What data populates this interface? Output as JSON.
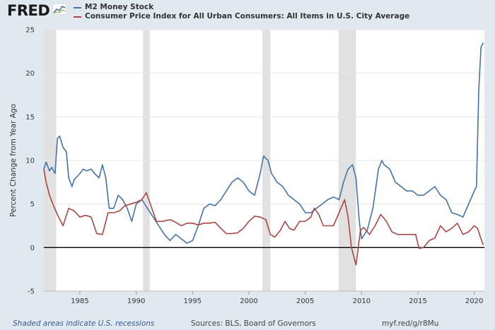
{
  "header": {
    "logo_text": "FRED",
    "logo_icon": "line-chart-icon"
  },
  "legend": [
    {
      "name": "M2 Money Stock",
      "color": "#4572a7"
    },
    {
      "name": "Consumer Price Index for All Urban Consumers: All Items in U.S. City Average",
      "color": "#aa4643"
    }
  ],
  "footer": {
    "left": "Shaded areas indicate U.S. recessions",
    "middle": "Sources: BLS, Board of Governors",
    "right": "myf.red/g/r8Mu"
  },
  "chart_data": {
    "type": "line",
    "ylabel": "Percent Change from Year Ago",
    "xlim": [
      1981.8,
      2020.9
    ],
    "ylim": [
      -5,
      25
    ],
    "y_ticks": [
      -5,
      0,
      5,
      10,
      15,
      20,
      25
    ],
    "x_ticks": [
      1985,
      1990,
      1995,
      2000,
      2005,
      2010,
      2015,
      2020
    ],
    "grid": true,
    "zero_line": true,
    "recessions": [
      [
        1981.8,
        1982.9
      ],
      [
        1990.6,
        1991.2
      ],
      [
        2001.2,
        2001.9
      ],
      [
        2007.95,
        2009.5
      ]
    ],
    "series": [
      {
        "name": "M2 Money Stock",
        "color": "#4572a7",
        "x": [
          1981.8,
          1982.0,
          1982.3,
          1982.5,
          1982.8,
          1983.0,
          1983.2,
          1983.5,
          1983.8,
          1984.0,
          1984.3,
          1984.5,
          1985.0,
          1985.3,
          1985.6,
          1986.0,
          1986.3,
          1986.7,
          1987.0,
          1987.3,
          1987.6,
          1988.0,
          1988.4,
          1988.8,
          1989.2,
          1989.6,
          1990.0,
          1990.5,
          1991.0,
          1991.5,
          1992.0,
          1992.5,
          1993.0,
          1993.5,
          1994.0,
          1994.5,
          1995.0,
          1995.5,
          1996.0,
          1996.5,
          1997.0,
          1997.5,
          1998.0,
          1998.5,
          1999.0,
          1999.5,
          2000.0,
          2000.5,
          2001.0,
          2001.3,
          2001.7,
          2002.0,
          2002.5,
          2003.0,
          2003.5,
          2004.0,
          2004.5,
          2005.0,
          2005.5,
          2006.0,
          2006.5,
          2007.0,
          2007.5,
          2008.0,
          2008.4,
          2008.8,
          2009.2,
          2009.5,
          2009.8,
          2010.0,
          2010.5,
          2011.0,
          2011.5,
          2011.8,
          2012.0,
          2012.5,
          2013.0,
          2013.5,
          2014.0,
          2014.5,
          2015.0,
          2015.5,
          2016.0,
          2016.5,
          2017.0,
          2017.5,
          2018.0,
          2018.5,
          2019.0,
          2019.5,
          2020.0,
          2020.2,
          2020.4,
          2020.6,
          2020.8
        ],
        "values": [
          9.0,
          9.8,
          8.8,
          9.2,
          8.5,
          12.5,
          12.8,
          11.5,
          11.0,
          8.0,
          7.0,
          7.8,
          8.5,
          9.0,
          8.8,
          9.0,
          8.5,
          8.0,
          9.5,
          8.0,
          4.5,
          4.5,
          6.0,
          5.5,
          4.5,
          3.0,
          5.0,
          5.5,
          4.5,
          3.5,
          2.5,
          1.5,
          0.8,
          1.5,
          1.0,
          0.5,
          0.8,
          2.5,
          4.5,
          5.0,
          4.8,
          5.5,
          6.5,
          7.5,
          8.0,
          7.5,
          6.5,
          6.0,
          8.5,
          10.5,
          10.0,
          8.5,
          7.5,
          7.0,
          6.0,
          5.5,
          5.0,
          4.0,
          4.0,
          4.5,
          5.0,
          5.5,
          5.8,
          5.5,
          7.5,
          9.0,
          9.5,
          8.0,
          3.0,
          1.0,
          2.0,
          4.5,
          9.0,
          10.0,
          9.5,
          9.0,
          7.5,
          7.0,
          6.5,
          6.5,
          6.0,
          6.0,
          6.5,
          7.0,
          6.0,
          5.5,
          4.0,
          3.8,
          3.5,
          5.0,
          6.5,
          7.0,
          18.0,
          23.0,
          23.5
        ]
      },
      {
        "name": "Consumer Price Index for All Urban Consumers: All Items in U.S. City Average",
        "color": "#aa4643",
        "x": [
          1981.8,
          1982.0,
          1982.3,
          1982.6,
          1983.0,
          1983.5,
          1984.0,
          1984.5,
          1985.0,
          1985.5,
          1986.0,
          1986.5,
          1987.0,
          1987.5,
          1988.0,
          1988.5,
          1989.0,
          1989.5,
          1990.0,
          1990.5,
          1990.9,
          1991.3,
          1991.8,
          1992.3,
          1993.0,
          1993.5,
          1994.0,
          1994.5,
          1995.0,
          1995.5,
          1996.0,
          1996.5,
          1997.0,
          1997.5,
          1998.0,
          1998.5,
          1999.0,
          1999.5,
          2000.0,
          2000.5,
          2001.0,
          2001.5,
          2001.9,
          2002.3,
          2002.8,
          2003.2,
          2003.6,
          2004.0,
          2004.5,
          2005.0,
          2005.5,
          2005.8,
          2006.2,
          2006.6,
          2007.0,
          2007.5,
          2008.0,
          2008.5,
          2008.8,
          2009.1,
          2009.5,
          2009.9,
          2010.2,
          2010.7,
          2011.2,
          2011.7,
          2012.2,
          2012.7,
          2013.2,
          2013.7,
          2014.2,
          2014.8,
          2015.1,
          2015.5,
          2016.0,
          2016.5,
          2017.0,
          2017.5,
          2018.0,
          2018.5,
          2019.0,
          2019.5,
          2020.0,
          2020.3,
          2020.6,
          2020.8
        ],
        "values": [
          9.0,
          7.5,
          6.0,
          5.0,
          3.8,
          2.5,
          4.5,
          4.2,
          3.5,
          3.7,
          3.5,
          1.6,
          1.5,
          4.0,
          4.0,
          4.2,
          4.8,
          5.0,
          5.2,
          5.5,
          6.3,
          4.8,
          3.0,
          3.0,
          3.2,
          2.9,
          2.5,
          2.8,
          2.8,
          2.6,
          2.8,
          2.8,
          2.9,
          2.2,
          1.6,
          1.6,
          1.7,
          2.2,
          3.0,
          3.6,
          3.5,
          3.2,
          1.5,
          1.2,
          2.0,
          3.0,
          2.2,
          2.0,
          3.0,
          3.0,
          3.5,
          4.5,
          3.8,
          2.5,
          2.5,
          2.5,
          4.0,
          5.5,
          3.5,
          0.0,
          -2.0,
          2.0,
          2.3,
          1.5,
          2.5,
          3.8,
          3.0,
          1.8,
          1.5,
          1.5,
          1.5,
          1.5,
          -0.1,
          0.0,
          0.8,
          1.1,
          2.5,
          1.8,
          2.2,
          2.8,
          1.5,
          1.8,
          2.5,
          2.2,
          1.0,
          0.3
        ]
      }
    ]
  }
}
